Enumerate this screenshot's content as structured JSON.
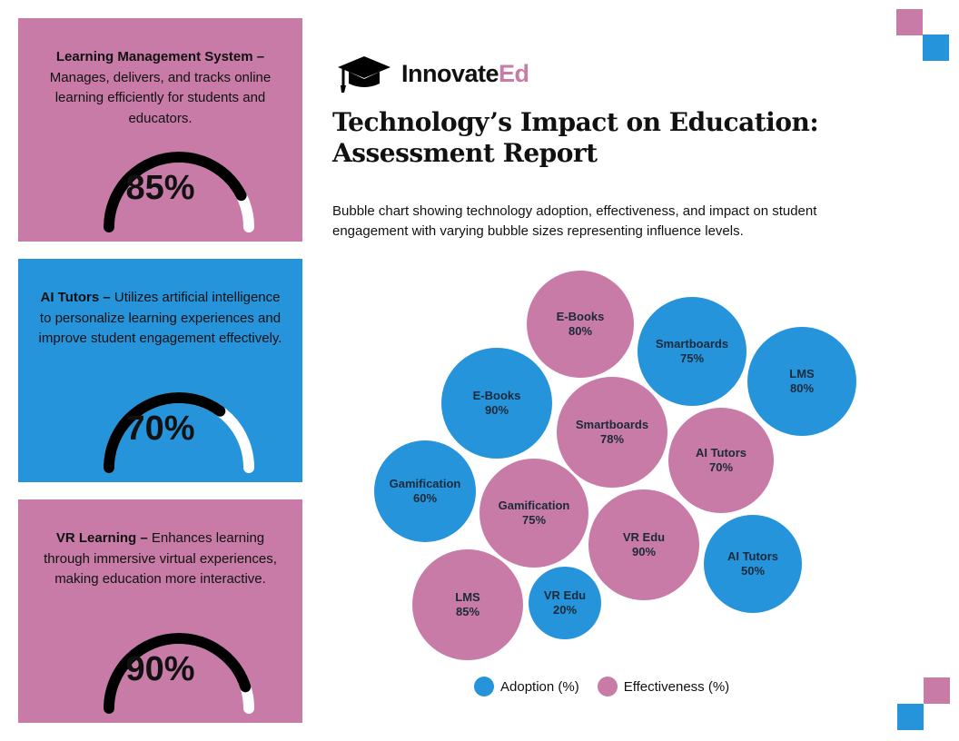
{
  "colors": {
    "pink": "#c87ba7",
    "blue": "#2694db",
    "black": "#000000",
    "white": "#ffffff"
  },
  "panels": [
    {
      "title": "Learning Management System –",
      "text": " Manages, delivers, and tracks online learning efficiently for students and educators.",
      "value": 85,
      "value_label": "85%",
      "color": "pink"
    },
    {
      "title": "AI Tutors –",
      "text": " Utilizes artificial intelligence to personalize learning experiences and improve student engagement effectively.",
      "value": 70,
      "value_label": "70%",
      "color": "blue"
    },
    {
      "title": "VR Learning –",
      "text": " Enhances learning through immersive virtual experiences, making education more interactive.",
      "value": 90,
      "value_label": "90%",
      "color": "pink"
    }
  ],
  "logo": {
    "name_main": "Innovate",
    "name_accent": "Ed",
    "icon": "graduation-cap-icon"
  },
  "title_line1": "Technology’s Impact on Education:",
  "title_line2": "Assessment Report",
  "description": "Bubble chart showing technology adoption, effectiveness, and impact on student engagement with varying bubble sizes representing influence levels.",
  "chart_data": {
    "type": "bubble",
    "legend_placement": "bottom",
    "series": [
      {
        "name": "Adoption (%)",
        "color": "#2694db",
        "points": [
          {
            "label": "E-Books",
            "value": 90
          },
          {
            "label": "Smartboards",
            "value": 75
          },
          {
            "label": "LMS",
            "value": 80
          },
          {
            "label": "Gamification",
            "value": 60
          },
          {
            "label": "AI Tutors",
            "value": 50
          },
          {
            "label": "VR Edu",
            "value": 20
          }
        ]
      },
      {
        "name": "Effectiveness (%)",
        "color": "#c87ba7",
        "points": [
          {
            "label": "E-Books",
            "value": 80
          },
          {
            "label": "Smartboards",
            "value": 78
          },
          {
            "label": "AI Tutors",
            "value": 70
          },
          {
            "label": "Gamification",
            "value": 75
          },
          {
            "label": "VR Edu",
            "value": 90
          },
          {
            "label": "LMS",
            "value": 85
          }
        ]
      }
    ]
  }
}
